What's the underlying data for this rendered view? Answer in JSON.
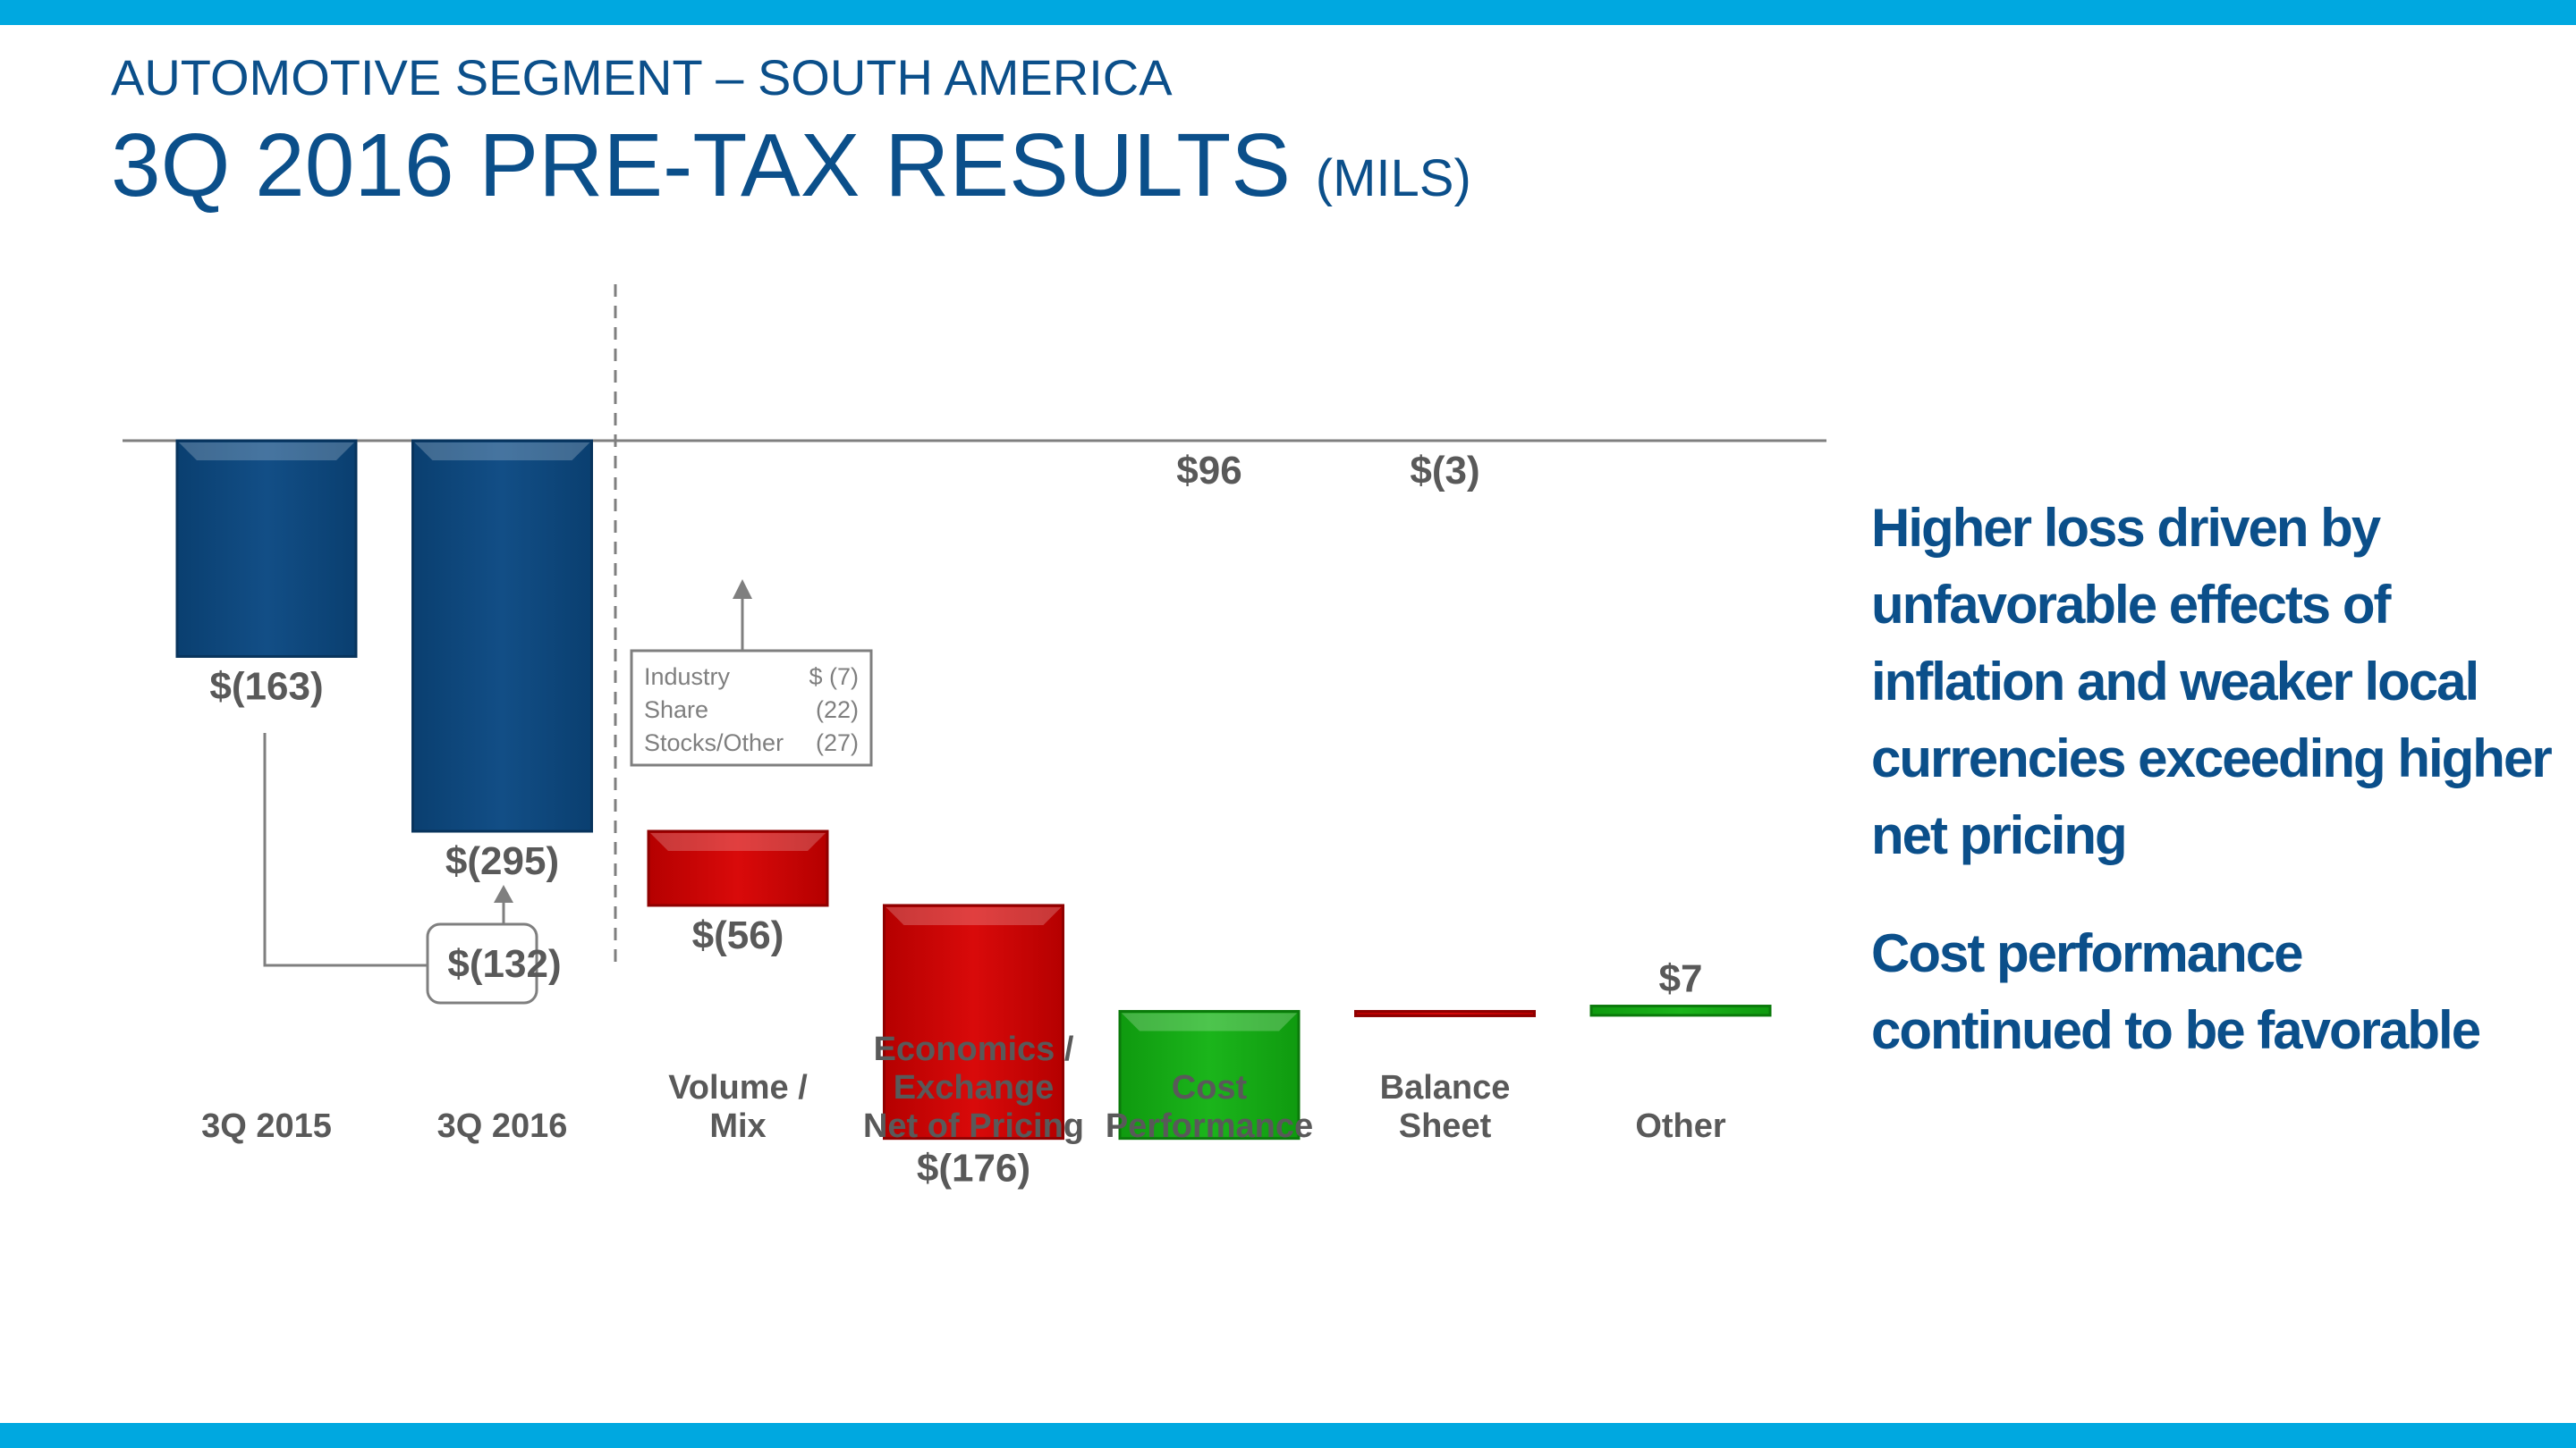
{
  "header": {
    "subtitle": "AUTOMOTIVE SEGMENT – SOUTH AMERICA",
    "title": "3Q 2016 PRE-TAX RESULTS",
    "units": "(MILS)"
  },
  "colors": {
    "accent_bar": "#00a8e0",
    "title": "#0b4f8a",
    "total_bar": "#0b4f8a",
    "negative": "#cc0000",
    "positive": "#16a816",
    "label": "#595959"
  },
  "chart_data": {
    "type": "bar",
    "subtype": "waterfall",
    "title": "3Q 2016 PRE-TAX RESULTS (MILS)",
    "categories": [
      [
        "3Q 2015"
      ],
      [
        "3Q 2016"
      ],
      [
        "Volume /",
        "Mix"
      ],
      [
        "Economics /",
        "Exchange",
        "Net of Pricing"
      ],
      [
        "Cost",
        "Performance"
      ],
      [
        "Balance",
        "Sheet"
      ],
      [
        "Other"
      ]
    ],
    "values": [
      -163,
      -295,
      -56,
      -176,
      96,
      -3,
      7
    ],
    "value_labels": [
      "$(163)",
      "$(295)",
      "$(56)",
      "$(176)",
      "$96",
      "$(3)",
      "$7"
    ],
    "kinds": [
      "total",
      "total",
      "change",
      "change",
      "change",
      "change",
      "change"
    ],
    "ylim": [
      -350,
      100
    ],
    "xlabel": "",
    "ylabel": "",
    "difference": {
      "from": "3Q 2015",
      "to": "3Q 2016",
      "label": "$(132)"
    },
    "volume_mix_breakdown": [
      {
        "name": "Industry",
        "value": "$ (7)"
      },
      {
        "name": "Share",
        "value": "(22)"
      },
      {
        "name": "Stocks/Other",
        "value": "(27)"
      }
    ]
  },
  "takeaways": [
    "Higher loss driven by unfavorable effects of inflation and weaker local currencies exceeding higher net pricing",
    "Cost performance continued to be favorable"
  ]
}
